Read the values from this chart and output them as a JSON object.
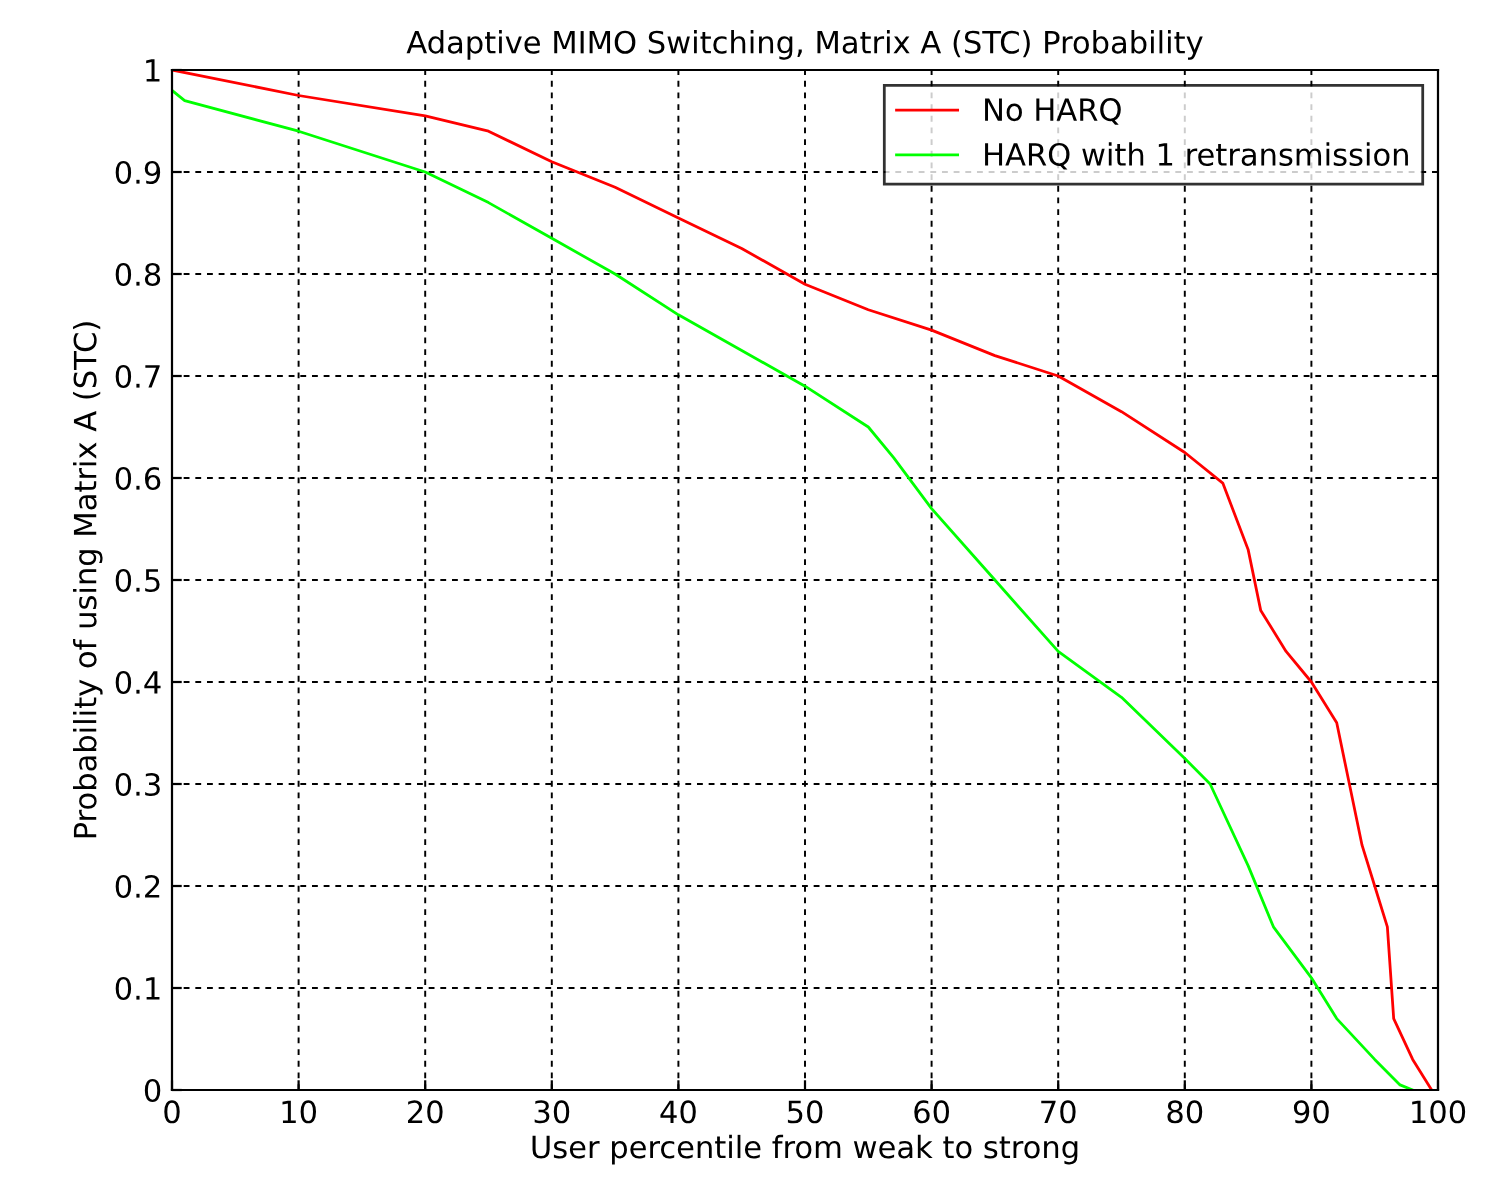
{
  "chart_data": {
    "type": "line",
    "title": "Adaptive MIMO Switching, Matrix A (STC) Probability",
    "xlabel": "User percentile from weak to strong",
    "ylabel": "Probability of using Matrix A (STC)",
    "series": [
      {
        "name": "No HARQ",
        "color": "#ff0000",
        "x": [
          0,
          10,
          20,
          25,
          30,
          35,
          40,
          45,
          50,
          55,
          60,
          65,
          70,
          75,
          80,
          83,
          85,
          86,
          88,
          90,
          92,
          93,
          94,
          95,
          96,
          96.5,
          98,
          99.5
        ],
        "values": [
          1.0,
          0.975,
          0.955,
          0.94,
          0.91,
          0.885,
          0.855,
          0.825,
          0.79,
          0.765,
          0.745,
          0.72,
          0.7,
          0.665,
          0.625,
          0.595,
          0.53,
          0.47,
          0.43,
          0.4,
          0.36,
          0.3,
          0.24,
          0.2,
          0.16,
          0.07,
          0.03,
          0.0
        ]
      },
      {
        "name": "HARQ with 1 retransmission",
        "color": "#00ff00",
        "x": [
          0,
          1,
          10,
          20,
          25,
          30,
          35,
          40,
          45,
          50,
          55,
          57,
          60,
          65,
          70,
          75,
          80,
          82,
          85,
          87,
          90,
          92,
          95,
          97,
          98
        ],
        "values": [
          0.98,
          0.97,
          0.94,
          0.9,
          0.87,
          0.835,
          0.8,
          0.76,
          0.725,
          0.69,
          0.65,
          0.62,
          0.57,
          0.5,
          0.43,
          0.385,
          0.325,
          0.3,
          0.22,
          0.16,
          0.11,
          0.07,
          0.03,
          0.005,
          0.0
        ]
      }
    ],
    "xlim": [
      0,
      100
    ],
    "ylim": [
      0,
      1
    ],
    "xticks": [
      0,
      10,
      20,
      30,
      40,
      50,
      60,
      70,
      80,
      90,
      100
    ],
    "yticks": [
      0,
      0.1,
      0.2,
      0.3,
      0.4,
      0.5,
      0.6,
      0.7,
      0.8,
      0.9,
      1
    ],
    "grid": true,
    "legend": "top right",
    "marker": "none",
    "line_style": "solid"
  }
}
